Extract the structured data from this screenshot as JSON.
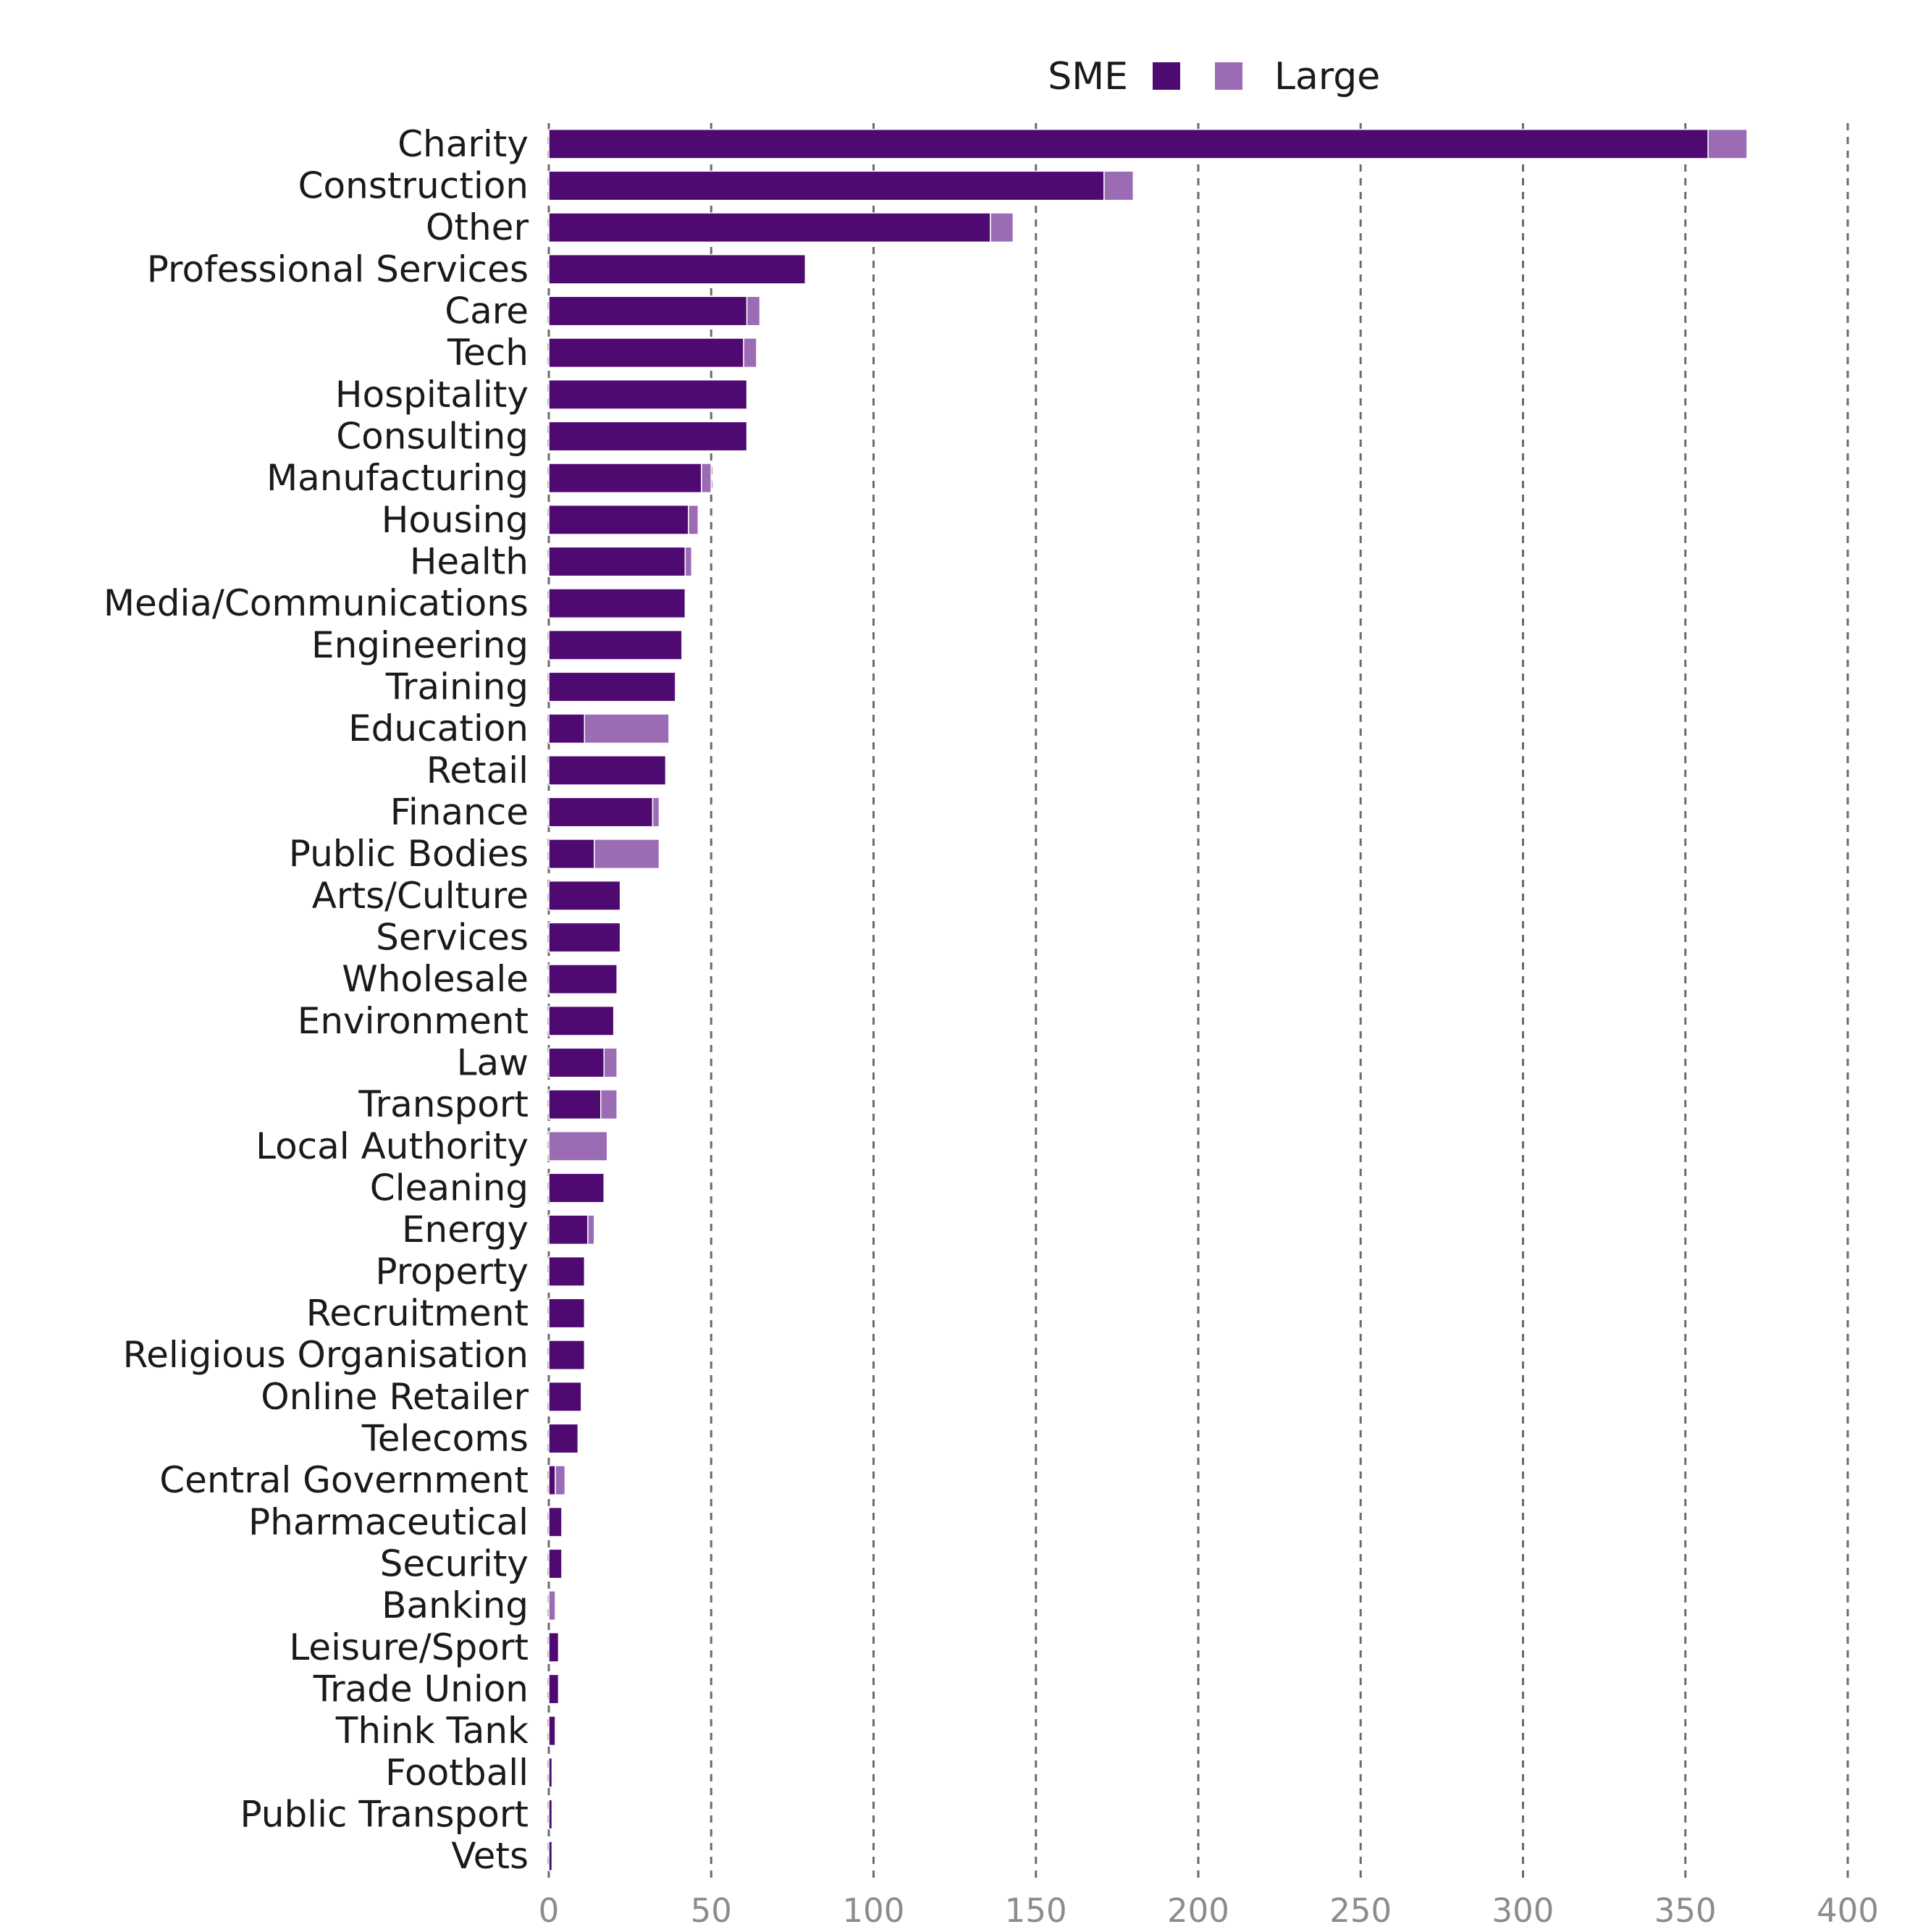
{
  "chart_data": {
    "type": "bar",
    "orientation": "horizontal",
    "stacked": true,
    "categories": [
      "Charity",
      "Construction",
      "Other",
      "Professional Services",
      "Care",
      "Tech",
      "Hospitality",
      "Consulting",
      "Manufacturing",
      "Housing",
      "Health",
      "Media/Communications",
      "Engineering",
      "Training",
      "Education",
      "Retail",
      "Finance",
      "Public Bodies",
      "Arts/Culture",
      "Services",
      "Wholesale",
      "Environment",
      "Law",
      "Transport",
      "Local Authority",
      "Cleaning",
      "Energy",
      "Property",
      "Recruitment",
      "Religious Organisation",
      "Online Retailer",
      "Telecoms",
      "Central Government",
      "Pharmaceutical",
      "Security",
      "Banking",
      "Leisure/Sport",
      "Trade Union",
      "Think Tank",
      "Football",
      "Public Transport",
      "Vets"
    ],
    "series": [
      {
        "name": "SME",
        "color": "#4f0a72",
        "values": [
          357,
          171,
          136,
          79,
          61,
          60,
          61,
          61,
          47,
          43,
          42,
          42,
          41,
          39,
          11,
          36,
          32,
          14,
          22,
          22,
          21,
          20,
          17,
          16,
          0,
          17,
          12,
          11,
          11,
          11,
          10,
          9,
          2,
          4,
          4,
          0,
          3,
          3,
          2,
          1,
          1,
          1
        ]
      },
      {
        "name": "Large",
        "color": "#9b6bb3",
        "values": [
          12,
          9,
          7,
          0,
          4,
          4,
          0,
          0,
          3,
          3,
          2,
          0,
          0,
          0,
          26,
          0,
          2,
          20,
          0,
          0,
          0,
          0,
          4,
          5,
          18,
          0,
          2,
          0,
          0,
          0,
          0,
          0,
          3,
          0,
          0,
          2,
          0,
          0,
          0,
          0,
          0,
          0
        ]
      }
    ],
    "xlim": [
      0,
      400
    ],
    "xticks": [
      "0",
      "50",
      "100",
      "150",
      "200",
      "250",
      "300",
      "350",
      "400"
    ],
    "grid": true,
    "legend_position": "top"
  }
}
